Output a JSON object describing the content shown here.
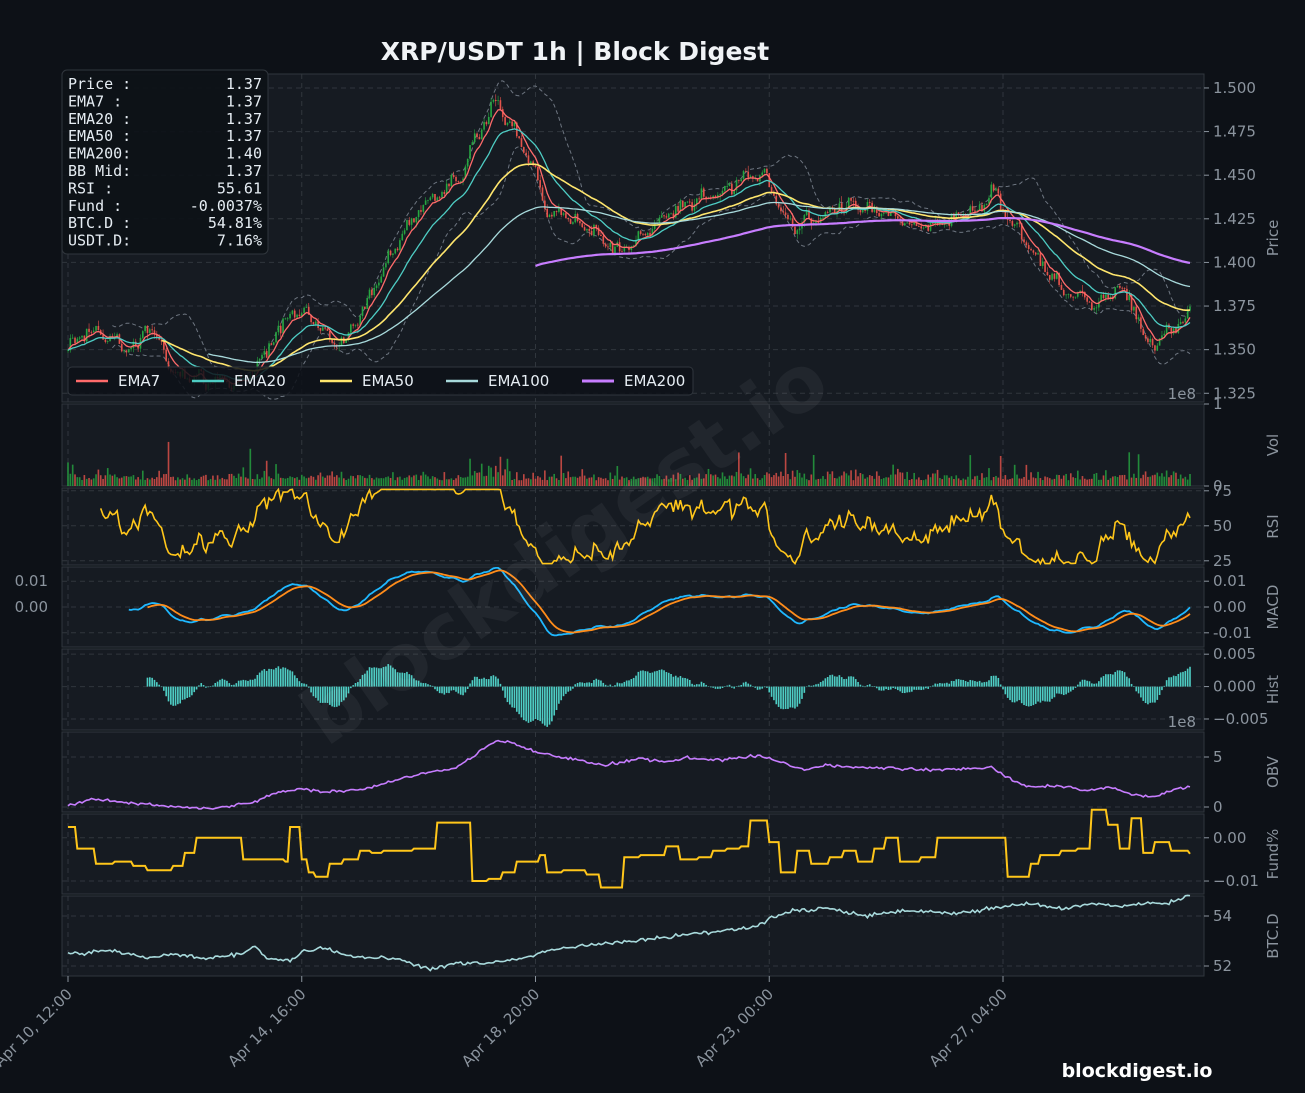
{
  "title": "XRP/USDT  1h  |  Block Digest",
  "watermark_center": "blockdigest.io",
  "watermark_corner": "blockdigest.io",
  "colors": {
    "bg": "#0d1117",
    "panel": "#161b22",
    "grid": "#30363d",
    "tick": "#8b949e",
    "up": "#26a641",
    "down": "#e5534b",
    "ema7": "#ff6b6b",
    "ema20": "#4ecdc4",
    "ema50": "#ffe66d",
    "ema100": "#a8dadc",
    "ema200": "#c77dff",
    "bb": "#6e7681",
    "rsi": "#ffc61a",
    "macd": "#1fb8ff",
    "signal": "#ff8c1a",
    "hist": "#4ecdc4",
    "obv": "#c77dff",
    "fund": "#ffc61a",
    "btcd": "#a8dadc"
  },
  "info_box": [
    {
      "label": "Price :",
      "value": "1.37"
    },
    {
      "label": "EMA7  :",
      "value": "1.37"
    },
    {
      "label": "EMA20 :",
      "value": "1.37"
    },
    {
      "label": "EMA50 :",
      "value": "1.37"
    },
    {
      "label": "EMA200:",
      "value": "1.40"
    },
    {
      "label": "BB Mid:",
      "value": "1.37"
    },
    {
      "label": "RSI   :",
      "value": "55.61"
    },
    {
      "label": "Fund  :",
      "value": "-0.0037%"
    },
    {
      "label": "BTC.D :",
      "value": "54.81%"
    },
    {
      "label": "USDT.D:",
      "value": "7.16%"
    }
  ],
  "chart_data": {
    "type": "line",
    "n_bars": 480,
    "x_ticks": [
      {
        "bar": 0,
        "label": "Apr 10, 12:00"
      },
      {
        "bar": 100,
        "label": "Apr 14, 16:00"
      },
      {
        "bar": 200,
        "label": "Apr 18, 20:00"
      },
      {
        "bar": 300,
        "label": "Apr 23, 00:00"
      },
      {
        "bar": 400,
        "label": "Apr 27, 04:00"
      }
    ],
    "legend": [
      {
        "name": "EMA7",
        "key": "ema7"
      },
      {
        "name": "EMA20",
        "key": "ema20"
      },
      {
        "name": "EMA50",
        "key": "ema50"
      },
      {
        "name": "EMA100",
        "key": "ema100"
      },
      {
        "name": "EMA200",
        "key": "ema200"
      }
    ],
    "price": {
      "ylabel": "Price",
      "ylim": [
        1.32,
        1.508
      ],
      "ticks": [
        "1.325",
        "1.350",
        "1.375",
        "1.400",
        "1.425",
        "1.450",
        "1.475",
        "1.500"
      ],
      "close_anchors": [
        [
          0,
          1.352
        ],
        [
          8,
          1.362
        ],
        [
          20,
          1.355
        ],
        [
          30,
          1.35
        ],
        [
          34,
          1.365
        ],
        [
          40,
          1.352
        ],
        [
          45,
          1.336
        ],
        [
          55,
          1.333
        ],
        [
          75,
          1.33
        ],
        [
          85,
          1.35
        ],
        [
          95,
          1.37
        ],
        [
          102,
          1.372
        ],
        [
          110,
          1.358
        ],
        [
          118,
          1.355
        ],
        [
          125,
          1.37
        ],
        [
          132,
          1.39
        ],
        [
          140,
          1.41
        ],
        [
          150,
          1.43
        ],
        [
          160,
          1.44
        ],
        [
          168,
          1.45
        ],
        [
          172,
          1.465
        ],
        [
          178,
          1.48
        ],
        [
          183,
          1.492
        ],
        [
          190,
          1.478
        ],
        [
          195,
          1.465
        ],
        [
          200,
          1.45
        ],
        [
          205,
          1.43
        ],
        [
          215,
          1.425
        ],
        [
          225,
          1.418
        ],
        [
          235,
          1.405
        ],
        [
          240,
          1.41
        ],
        [
          250,
          1.42
        ],
        [
          260,
          1.43
        ],
        [
          270,
          1.438
        ],
        [
          280,
          1.44
        ],
        [
          290,
          1.45
        ],
        [
          298,
          1.45
        ],
        [
          305,
          1.43
        ],
        [
          310,
          1.42
        ],
        [
          320,
          1.425
        ],
        [
          330,
          1.432
        ],
        [
          340,
          1.433
        ],
        [
          350,
          1.43
        ],
        [
          360,
          1.42
        ],
        [
          370,
          1.42
        ],
        [
          380,
          1.425
        ],
        [
          390,
          1.43
        ],
        [
          395,
          1.443
        ],
        [
          400,
          1.43
        ],
        [
          410,
          1.41
        ],
        [
          418,
          1.398
        ],
        [
          425,
          1.385
        ],
        [
          435,
          1.38
        ],
        [
          440,
          1.375
        ],
        [
          450,
          1.385
        ],
        [
          455,
          1.378
        ],
        [
          460,
          1.36
        ],
        [
          465,
          1.35
        ],
        [
          470,
          1.362
        ],
        [
          478,
          1.368
        ],
        [
          480,
          1.372
        ]
      ]
    },
    "volume": {
      "ylabel": "Vol",
      "ylim": [
        0,
        1
      ],
      "ticks": [
        "0",
        "1"
      ],
      "exponent_label": "1e8"
    },
    "rsi": {
      "ylabel": "RSI",
      "ylim": [
        22,
        77
      ],
      "ticks": [
        "25",
        "50",
        "75"
      ],
      "last": 55.61
    },
    "macd": {
      "ylabel": "MACD",
      "ylim": [
        -0.0155,
        0.0155
      ],
      "ticks": [
        "0.01",
        "0.00",
        "-0.01"
      ],
      "left_ticks": [
        "0.01",
        "0.00"
      ]
    },
    "hist": {
      "ylabel": "Hist",
      "ylim": [
        -0.0067,
        0.0058
      ],
      "ticks": [
        "0.005",
        "0.000",
        "−0.005"
      ]
    },
    "obv": {
      "ylabel": "OBV",
      "ylim": [
        -0.5,
        7.5
      ],
      "ticks": [
        "0",
        "5"
      ],
      "exponent_label": "1e8",
      "anchors": [
        [
          0,
          0.2
        ],
        [
          10,
          0.8
        ],
        [
          30,
          0.3
        ],
        [
          45,
          0.1
        ],
        [
          60,
          -0.2
        ],
        [
          70,
          0.1
        ],
        [
          80,
          0.5
        ],
        [
          90,
          1.5
        ],
        [
          100,
          1.8
        ],
        [
          110,
          1.5
        ],
        [
          125,
          1.7
        ],
        [
          135,
          2.3
        ],
        [
          145,
          3.0
        ],
        [
          155,
          3.5
        ],
        [
          165,
          3.8
        ],
        [
          175,
          5.3
        ],
        [
          183,
          6.7
        ],
        [
          190,
          6.4
        ],
        [
          200,
          5.5
        ],
        [
          210,
          5.0
        ],
        [
          220,
          4.6
        ],
        [
          230,
          4.2
        ],
        [
          245,
          4.8
        ],
        [
          255,
          4.5
        ],
        [
          265,
          4.9
        ],
        [
          280,
          4.7
        ],
        [
          295,
          5.2
        ],
        [
          305,
          4.5
        ],
        [
          315,
          3.7
        ],
        [
          325,
          4.2
        ],
        [
          335,
          4.0
        ],
        [
          350,
          3.9
        ],
        [
          365,
          3.7
        ],
        [
          380,
          3.8
        ],
        [
          395,
          4.0
        ],
        [
          400,
          3.2
        ],
        [
          410,
          2.0
        ],
        [
          425,
          2.1
        ],
        [
          435,
          1.6
        ],
        [
          445,
          2.0
        ],
        [
          455,
          1.3
        ],
        [
          465,
          1.0
        ],
        [
          475,
          1.9
        ],
        [
          480,
          2.0
        ]
      ]
    },
    "funding": {
      "ylabel": "Fund%",
      "ylim": [
        -0.013,
        0.0055
      ],
      "ticks": [
        "0.00",
        "−0.01"
      ],
      "steps": [
        [
          0,
          0.0025
        ],
        [
          4,
          -0.0025
        ],
        [
          12,
          -0.006
        ],
        [
          20,
          -0.0055
        ],
        [
          28,
          -0.0065
        ],
        [
          34,
          -0.0075
        ],
        [
          45,
          -0.0065
        ],
        [
          50,
          -0.0035
        ],
        [
          55,
          0.0
        ],
        [
          75,
          -0.005
        ],
        [
          85,
          -0.005
        ],
        [
          93,
          -0.0055
        ],
        [
          95,
          0.0025
        ],
        [
          100,
          -0.005
        ],
        [
          103,
          -0.008
        ],
        [
          106,
          -0.009
        ],
        [
          112,
          -0.006
        ],
        [
          118,
          -0.005
        ],
        [
          125,
          -0.003
        ],
        [
          130,
          -0.0035
        ],
        [
          135,
          -0.003
        ],
        [
          148,
          -0.0025
        ],
        [
          158,
          0.0035
        ],
        [
          170,
          0.0035
        ],
        [
          173,
          -0.01
        ],
        [
          180,
          -0.0095
        ],
        [
          186,
          -0.008
        ],
        [
          192,
          -0.0055
        ],
        [
          202,
          -0.004
        ],
        [
          205,
          -0.008
        ],
        [
          212,
          -0.0075
        ],
        [
          222,
          -0.0085
        ],
        [
          228,
          -0.0115
        ],
        [
          238,
          -0.0045
        ],
        [
          245,
          -0.004
        ],
        [
          256,
          -0.002
        ],
        [
          262,
          -0.005
        ],
        [
          270,
          -0.0045
        ],
        [
          276,
          -0.003
        ],
        [
          282,
          -0.0025
        ],
        [
          288,
          -0.002
        ],
        [
          292,
          0.004
        ],
        [
          300,
          -0.001
        ],
        [
          305,
          -0.008
        ],
        [
          312,
          -0.003
        ],
        [
          318,
          -0.006
        ],
        [
          326,
          -0.0045
        ],
        [
          332,
          -0.003
        ],
        [
          338,
          -0.0055
        ],
        [
          345,
          -0.0025
        ],
        [
          350,
          0.0
        ],
        [
          356,
          -0.0055
        ],
        [
          365,
          -0.0045
        ],
        [
          372,
          0.0
        ],
        [
          385,
          0.0
        ],
        [
          402,
          -0.009
        ],
        [
          412,
          -0.006
        ],
        [
          416,
          -0.004
        ],
        [
          425,
          -0.003
        ],
        [
          432,
          -0.0025
        ],
        [
          438,
          0.0065
        ],
        [
          445,
          0.003
        ],
        [
          450,
          -0.0025
        ],
        [
          455,
          0.0045
        ],
        [
          460,
          -0.0035
        ],
        [
          465,
          -0.001
        ],
        [
          472,
          -0.003
        ],
        [
          480,
          -0.0037
        ]
      ]
    },
    "btcd": {
      "ylabel": "BTC.D",
      "ylim": [
        51.6,
        54.8
      ],
      "ticks": [
        "52",
        "54"
      ],
      "last": 54.81,
      "anchors": [
        [
          0,
          52.5
        ],
        [
          20,
          52.6
        ],
        [
          35,
          52.3
        ],
        [
          45,
          52.5
        ],
        [
          60,
          52.3
        ],
        [
          75,
          52.5
        ],
        [
          80,
          52.8
        ],
        [
          85,
          52.3
        ],
        [
          95,
          52.2
        ],
        [
          100,
          52.6
        ],
        [
          110,
          52.7
        ],
        [
          120,
          52.4
        ],
        [
          130,
          52.3
        ],
        [
          140,
          52.3
        ],
        [
          150,
          52.0
        ],
        [
          155,
          51.85
        ],
        [
          165,
          52.1
        ],
        [
          180,
          52.1
        ],
        [
          195,
          52.3
        ],
        [
          205,
          52.6
        ],
        [
          220,
          52.8
        ],
        [
          240,
          53.0
        ],
        [
          260,
          53.2
        ],
        [
          280,
          53.4
        ],
        [
          295,
          53.6
        ],
        [
          300,
          53.9
        ],
        [
          310,
          54.2
        ],
        [
          325,
          54.3
        ],
        [
          340,
          54.0
        ],
        [
          355,
          54.2
        ],
        [
          365,
          54.2
        ],
        [
          380,
          54.1
        ],
        [
          395,
          54.3
        ],
        [
          410,
          54.5
        ],
        [
          425,
          54.3
        ],
        [
          440,
          54.5
        ],
        [
          450,
          54.4
        ],
        [
          460,
          54.5
        ],
        [
          470,
          54.5
        ],
        [
          480,
          54.81
        ]
      ]
    }
  }
}
